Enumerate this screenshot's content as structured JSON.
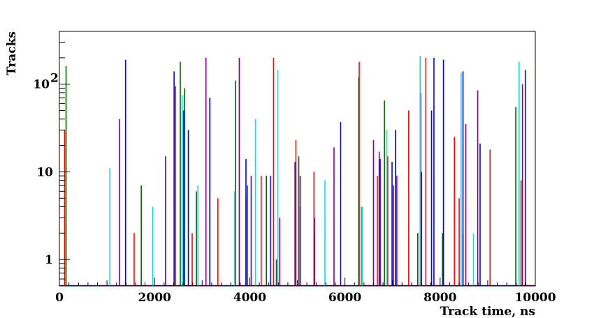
{
  "chart_data": {
    "type": "bar",
    "title": "",
    "xlabel": "Track time, ns",
    "ylabel": "Tracks",
    "xlim": [
      0,
      10000
    ],
    "ylim": [
      0.5,
      400
    ],
    "yscale": "log",
    "grid": false,
    "legend": "none",
    "x_ticks": [
      {
        "value": 0,
        "label": "0"
      },
      {
        "value": 2000,
        "label": "2000"
      },
      {
        "value": 4000,
        "label": "4000"
      },
      {
        "value": 6000,
        "label": "6000"
      },
      {
        "value": 8000,
        "label": "8000"
      },
      {
        "value": 10000,
        "label": "10000"
      }
    ],
    "y_ticks": [
      {
        "value": 1,
        "label": "1",
        "sup": ""
      },
      {
        "value": 10,
        "label": "10",
        "sup": ""
      },
      {
        "value": 100,
        "label": "10",
        "sup": "2"
      }
    ],
    "series": [
      {
        "color": "#ff0000",
        "points": [
          [
            110,
            30
          ],
          [
            1570,
            2
          ],
          [
            2440,
            95
          ],
          [
            2790,
            2
          ],
          [
            3330,
            5
          ],
          [
            3920,
            5
          ],
          [
            4240,
            9
          ],
          [
            4500,
            200
          ],
          [
            4970,
            23
          ],
          [
            5350,
            10
          ],
          [
            6300,
            180
          ],
          [
            6680,
            9
          ],
          [
            6900,
            15
          ],
          [
            7090,
            9
          ],
          [
            7340,
            50
          ],
          [
            7700,
            200
          ],
          [
            8300,
            25
          ],
          [
            8400,
            5
          ],
          [
            8480,
            2
          ],
          [
            9050,
            18
          ],
          [
            9700,
            8
          ]
        ]
      },
      {
        "color": "#006400",
        "points": [
          [
            140,
            160
          ],
          [
            1720,
            7
          ],
          [
            2540,
            180
          ],
          [
            2630,
            90
          ],
          [
            2880,
            6
          ],
          [
            3700,
            110
          ],
          [
            3950,
            7
          ],
          [
            4350,
            9
          ],
          [
            4560,
            1
          ],
          [
            5030,
            15
          ],
          [
            5360,
            2
          ],
          [
            6290,
            120
          ],
          [
            6350,
            4
          ],
          [
            6830,
            65
          ],
          [
            7530,
            2
          ],
          [
            8050,
            2
          ],
          [
            9590,
            55
          ]
        ]
      },
      {
        "color": "#0000ff",
        "points": [
          [
            1390,
            190
          ],
          [
            2410,
            140
          ],
          [
            2610,
            50
          ],
          [
            2710,
            30
          ],
          [
            3160,
            70
          ],
          [
            3920,
            14
          ],
          [
            4440,
            9
          ],
          [
            5060,
            4
          ],
          [
            5910,
            37
          ],
          [
            6740,
            14
          ],
          [
            6990,
            13
          ],
          [
            7060,
            30
          ],
          [
            7820,
            50
          ],
          [
            7870,
            200
          ],
          [
            8070,
            190
          ],
          [
            8480,
            140
          ],
          [
            8840,
            21
          ],
          [
            9790,
            145
          ]
        ]
      },
      {
        "color": "#800080",
        "points": [
          [
            1260,
            40
          ],
          [
            2230,
            15
          ],
          [
            3080,
            200
          ],
          [
            3780,
            200
          ],
          [
            4030,
            9
          ],
          [
            4630,
            3
          ],
          [
            4950,
            13
          ],
          [
            5060,
            9
          ],
          [
            5360,
            3
          ],
          [
            5770,
            19
          ],
          [
            6600,
            23
          ],
          [
            6720,
            17
          ],
          [
            7020,
            7
          ],
          [
            7590,
            80
          ],
          [
            7610,
            10
          ],
          [
            8540,
            35
          ],
          [
            8790,
            85
          ],
          [
            9730,
            100
          ]
        ]
      },
      {
        "color": "#00e5e5",
        "points": [
          [
            1060,
            11
          ],
          [
            1960,
            4
          ],
          [
            2580,
            75
          ],
          [
            2910,
            7
          ],
          [
            3680,
            6
          ],
          [
            4120,
            40
          ],
          [
            4590,
            145
          ],
          [
            5580,
            8
          ],
          [
            6360,
            4
          ],
          [
            6880,
            30
          ],
          [
            7580,
            210
          ],
          [
            8440,
            135
          ],
          [
            8700,
            2
          ],
          [
            9660,
            180
          ]
        ]
      }
    ],
    "baseline_series": [
      {
        "color": "#800080",
        "x_start": 0,
        "x_end": 10000
      }
    ]
  }
}
